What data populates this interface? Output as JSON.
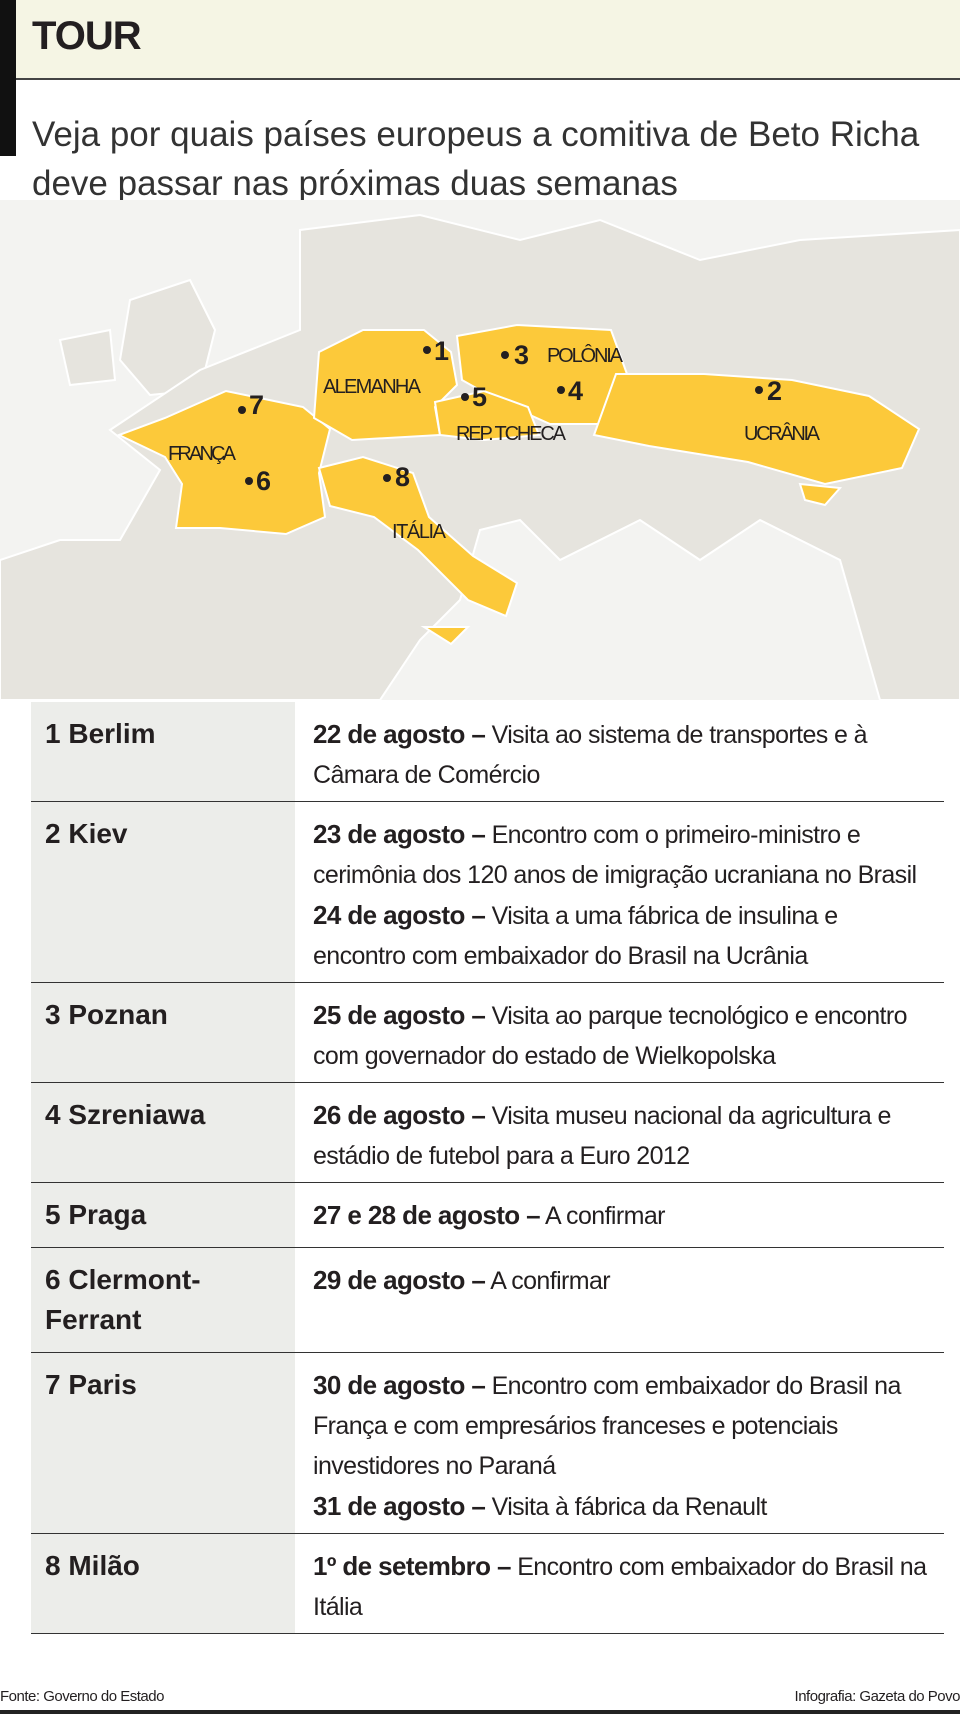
{
  "header": {
    "title": "TOUR",
    "subtitle": "Veja por quais países europeus a comitiva de Beto Richa deve passar nas próximas duas semanas"
  },
  "map": {
    "countries": [
      "ALEMANHA",
      "POLÔNIA",
      "REP. TCHECA",
      "UCRÂNIA",
      "FRANÇA",
      "ITÁLIA"
    ],
    "markers": [
      "1",
      "2",
      "3",
      "4",
      "5",
      "6",
      "7",
      "8"
    ]
  },
  "table": {
    "rows": [
      {
        "city": "1 Berlim",
        "entries": [
          {
            "date": "22 de agosto –",
            "text": "Visita ao sistema de transportes e à Câmara de Comércio"
          }
        ]
      },
      {
        "city": "2 Kiev",
        "entries": [
          {
            "date": "23 de agosto –",
            "text": "Encontro com o primeiro-ministro e cerimônia dos 120 anos de imigração ucraniana no Brasil"
          },
          {
            "date": "24 de agosto –",
            "text": "Visita a uma fábrica de insulina e encontro com embaixador do Brasil na Ucrânia"
          }
        ]
      },
      {
        "city": "3 Poznan",
        "entries": [
          {
            "date": "25 de agosto –",
            "text": "Visita ao parque tecnológico e encontro com governador do estado de Wielkopolska"
          }
        ]
      },
      {
        "city": "4 Szreniawa",
        "entries": [
          {
            "date": "26 de agosto –",
            "text": "Visita museu nacional da agricultura e estádio de futebol para a Euro 2012"
          }
        ]
      },
      {
        "city": "5 Praga",
        "entries": [
          {
            "date": "27 e 28 de agosto –",
            "text": "A confirmar"
          }
        ]
      },
      {
        "city": "6 Clermont-Ferrant",
        "entries": [
          {
            "date": "29 de agosto –",
            "text": "A confirmar"
          }
        ]
      },
      {
        "city": "7 Paris",
        "entries": [
          {
            "date": "30 de agosto –",
            "text": "Encontro com embaixador do Brasil na França e com empresários franceses e potenciais investidores no Paraná"
          },
          {
            "date": "31 de agosto –",
            "text": "Visita à fábrica da Renault"
          }
        ]
      },
      {
        "city": "8 Milão",
        "entries": [
          {
            "date": "1º de setembro –",
            "text": "Encontro com embaixador do Brasil na Itália"
          }
        ]
      }
    ]
  },
  "footer": {
    "source": "Fonte: Governo do Estado",
    "credit": "Infografia: Gazeta do Povo"
  }
}
